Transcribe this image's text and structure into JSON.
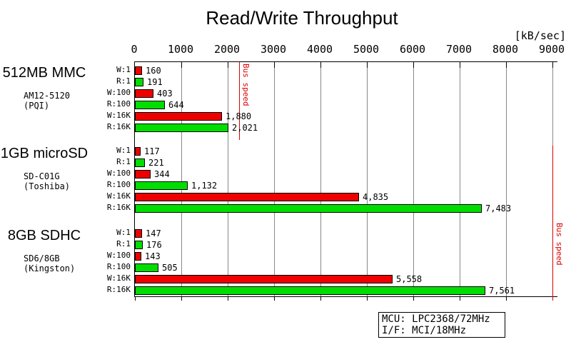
{
  "title": "Read/Write Throughput",
  "axis_unit": "[kB/sec]",
  "footnote": {
    "line1": "MCU: LPC2368/72MHz",
    "line2": "I/F: MCI/18MHz"
  },
  "colors": {
    "write_bar": "#ee0000",
    "read_bar": "#00dd00",
    "bus_line": "#dd0000",
    "gridline": "#888888"
  },
  "chart_data": {
    "type": "bar",
    "orientation": "horizontal",
    "title": "Read/Write Throughput",
    "xlabel": "[kB/sec]",
    "xlim": [
      0,
      9000
    ],
    "x_ticks": [
      0,
      1000,
      2000,
      3000,
      4000,
      5000,
      6000,
      7000,
      8000,
      9000
    ],
    "grid": true,
    "bar_colors": {
      "write": "#ee0000",
      "read": "#00dd00"
    },
    "bus_speed_label": "Bus speed",
    "bus_speed_markers": [
      {
        "value": 2250,
        "label": "Bus speed",
        "groups": [
          0
        ]
      },
      {
        "value": 9000,
        "label": "Bus speed",
        "groups": [
          1,
          2
        ]
      }
    ],
    "groups": [
      {
        "name": "512MB MMC",
        "model": "AM12-5120",
        "maker": "(PQI)",
        "bars": [
          {
            "label": "W:1",
            "value": 160,
            "display": "160",
            "type": "write"
          },
          {
            "label": "R:1",
            "value": 191,
            "display": "191",
            "type": "read"
          },
          {
            "label": "W:100",
            "value": 403,
            "display": "403",
            "type": "write"
          },
          {
            "label": "R:100",
            "value": 644,
            "display": "644",
            "type": "read"
          },
          {
            "label": "W:16K",
            "value": 1880,
            "display": "1,880",
            "type": "write"
          },
          {
            "label": "R:16K",
            "value": 2021,
            "display": "2,021",
            "type": "read"
          }
        ]
      },
      {
        "name": "1GB microSD",
        "model": "SD-C01G",
        "maker": "(Toshiba)",
        "bars": [
          {
            "label": "W:1",
            "value": 117,
            "display": "117",
            "type": "write"
          },
          {
            "label": "R:1",
            "value": 221,
            "display": "221",
            "type": "read"
          },
          {
            "label": "W:100",
            "value": 344,
            "display": "344",
            "type": "write"
          },
          {
            "label": "R:100",
            "value": 1132,
            "display": "1,132",
            "type": "read"
          },
          {
            "label": "W:16K",
            "value": 4835,
            "display": "4,835",
            "type": "write"
          },
          {
            "label": "R:16K",
            "value": 7483,
            "display": "7,483",
            "type": "read"
          }
        ]
      },
      {
        "name": "8GB SDHC",
        "model": "SD6/8GB",
        "maker": "(Kingston)",
        "bars": [
          {
            "label": "W:1",
            "value": 147,
            "display": "147",
            "type": "write"
          },
          {
            "label": "R:1",
            "value": 176,
            "display": "176",
            "type": "read"
          },
          {
            "label": "W:100",
            "value": 143,
            "display": "143",
            "type": "write"
          },
          {
            "label": "R:100",
            "value": 505,
            "display": "505",
            "type": "read"
          },
          {
            "label": "W:16K",
            "value": 5558,
            "display": "5,558",
            "type": "write"
          },
          {
            "label": "R:16K",
            "value": 7561,
            "display": "7,561",
            "type": "read"
          }
        ]
      }
    ]
  }
}
